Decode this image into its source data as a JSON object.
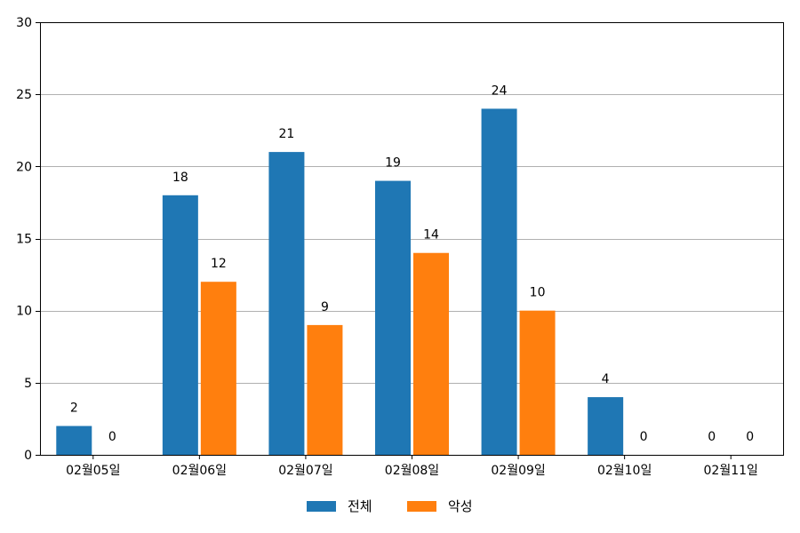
{
  "chart_data": {
    "type": "bar",
    "categories": [
      "02월05일",
      "02월06일",
      "02월07일",
      "02월08일",
      "02월09일",
      "02월10일",
      "02월11일"
    ],
    "series": [
      {
        "name": "전체",
        "values": [
          2,
          18,
          21,
          19,
          24,
          4,
          0
        ],
        "color": "#1f77b4"
      },
      {
        "name": "악성",
        "values": [
          0,
          12,
          9,
          14,
          10,
          0,
          0
        ],
        "color": "#ff7f0e"
      }
    ],
    "ylim": [
      0,
      30
    ],
    "yticks": [
      0,
      5,
      10,
      15,
      20,
      25,
      30
    ],
    "grid": "y",
    "legend": "bottom-center",
    "title": "",
    "xlabel": "",
    "ylabel": ""
  }
}
